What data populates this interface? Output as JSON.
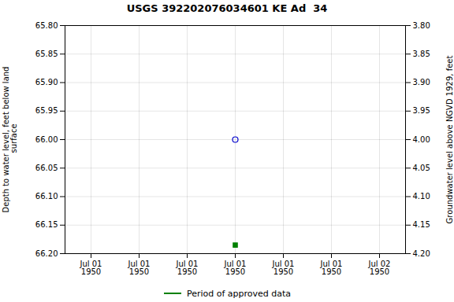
{
  "chart_data": {
    "type": "scatter",
    "title": "USGS 392202076034601 KE Ad  34",
    "ylabel": "Depth to water level, feet below land\n surface",
    "y2label": "Groundwater level above NGVD 1929, feet",
    "categories": [
      "Jul 01\n1950",
      "Jul 01\n1950",
      "Jul 01\n1950",
      "Jul 01\n1950",
      "Jul 01\n1950",
      "Jul 01\n1950",
      "Jul 02\n1950"
    ],
    "series": [
      {
        "color": "#0000cc",
        "marker": "circle",
        "values": [
          null,
          null,
          null,
          66.0,
          null,
          null,
          null
        ]
      },
      {
        "name": "Period of approved data",
        "color": "#008000",
        "marker": "square",
        "values": [
          null,
          null,
          null,
          66.185,
          null,
          null,
          null
        ]
      }
    ],
    "ylim": [
      66.2,
      65.8
    ],
    "yticks": [
      {
        "value": 65.8,
        "label": "65.80"
      },
      65.85,
      {
        "value": 65.9,
        "label": "65.90"
      },
      65.95,
      {
        "value": 66.0,
        "label": "66.00"
      },
      66.05,
      {
        "value": 66.1,
        "label": "66.10"
      },
      66.15,
      {
        "value": 66.2,
        "label": "66.20"
      }
    ],
    "y2lim": [
      4.2,
      3.8
    ],
    "y2ticks": [
      {
        "value": 4.2,
        "label": "4.20"
      },
      4.15,
      {
        "value": 4.1,
        "label": "4.10"
      },
      4.05,
      {
        "value": 4.0,
        "label": "4.00"
      },
      3.95,
      {
        "value": 3.9,
        "label": "3.90"
      },
      3.85,
      {
        "value": 3.8,
        "label": "3.80"
      }
    ],
    "grid": true,
    "legend": "bottom"
  }
}
